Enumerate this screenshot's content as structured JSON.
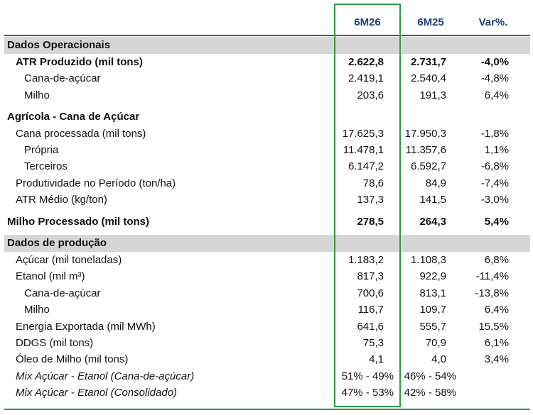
{
  "header": {
    "columns": [
      "6M26",
      "6M25",
      "Var%."
    ]
  },
  "rows": [
    {
      "label": "Dados Operacionais",
      "style": "section",
      "indent": 0
    },
    {
      "label": "ATR Produzido (mil tons)",
      "style": "bold",
      "indent": 1,
      "values": [
        "2.622,8",
        "2.731,7",
        "-4,0%"
      ]
    },
    {
      "label": "Cana-de-açúcar",
      "style": "normal",
      "indent": 2,
      "values": [
        "2.419,1",
        "2.540,4",
        "-4,8%"
      ]
    },
    {
      "label": "Milho",
      "style": "normal",
      "indent": 2,
      "values": [
        "203,6",
        "191,3",
        "6,4%"
      ]
    },
    {
      "label": "Agrícola - Cana de Açúcar",
      "style": "bold",
      "indent": 0
    },
    {
      "label": "Cana processada (mil tons)",
      "style": "normal",
      "indent": 1,
      "values": [
        "17.625,3",
        "17.950,3",
        "-1,8%"
      ]
    },
    {
      "label": "Própria",
      "style": "normal",
      "indent": 2,
      "values": [
        "11.478,1",
        "11.357,6",
        "1,1%"
      ]
    },
    {
      "label": "Terceiros",
      "style": "normal",
      "indent": 2,
      "values": [
        "6.147,2",
        "6.592,7",
        "-6,8%"
      ]
    },
    {
      "label": "Produtividade no Período (ton/ha)",
      "style": "normal",
      "indent": 1,
      "values": [
        "78,6",
        "84,9",
        "-7,4%"
      ]
    },
    {
      "label": "ATR Médio (kg/ton)",
      "style": "normal",
      "indent": 1,
      "values": [
        "137,3",
        "141,5",
        "-3,0%"
      ]
    },
    {
      "label": "Milho Processado (mil tons)",
      "style": "bold",
      "indent": 0,
      "values": [
        "278,5",
        "264,3",
        "5,4%"
      ]
    },
    {
      "label": "Dados de produção",
      "style": "section",
      "indent": 0
    },
    {
      "label": "Açúcar (mil toneladas)",
      "style": "normal",
      "indent": 1,
      "values": [
        "1.183,2",
        "1.108,3",
        "6,8%"
      ]
    },
    {
      "label": "Etanol (mil m³)",
      "style": "normal",
      "indent": 1,
      "values": [
        "817,3",
        "922,9",
        "-11,4%"
      ]
    },
    {
      "label": "Cana-de-açúcar",
      "style": "normal",
      "indent": 2,
      "values": [
        "700,6",
        "813,1",
        "-13,8%"
      ]
    },
    {
      "label": "Milho",
      "style": "normal",
      "indent": 2,
      "values": [
        "116,7",
        "109,7",
        "6,4%"
      ]
    },
    {
      "label": "Energia Exportada (mil MWh)",
      "style": "normal",
      "indent": 1,
      "values": [
        "641,6",
        "555,7",
        "15,5%"
      ]
    },
    {
      "label": "DDGS (mil tons)",
      "style": "normal",
      "indent": 1,
      "values": [
        "75,3",
        "70,9",
        "6,1%"
      ]
    },
    {
      "label": "Óleo de Milho (mil tons)",
      "style": "normal",
      "indent": 1,
      "values": [
        "4,1",
        "4,0",
        "3,4%"
      ]
    },
    {
      "label": "Mix Açúcar - Etanol (Cana-de-açúcar)",
      "style": "italic",
      "indent": 1,
      "values": [
        "51% - 49%",
        "46% - 54%"
      ]
    },
    {
      "label": "Mix Açúcar - Etanol (Consolidado)",
      "style": "italic",
      "indent": 1,
      "values": [
        "47% - 53%",
        "42% - 58%"
      ]
    }
  ]
}
